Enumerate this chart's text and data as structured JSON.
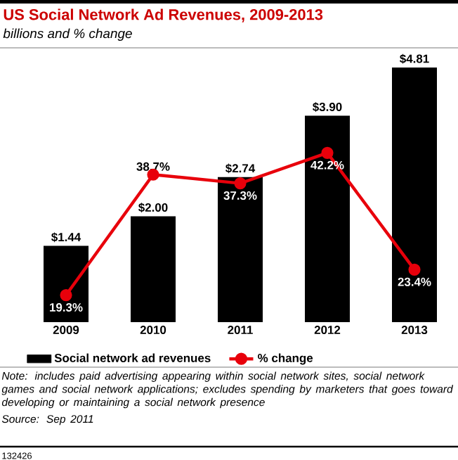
{
  "chart_data": {
    "type": "bar",
    "title": "US Social Network Ad Revenues, 2009-2013",
    "subtitle": "billions and % change",
    "categories": [
      "2009",
      "2010",
      "2011",
      "2012",
      "2013"
    ],
    "series": [
      {
        "name": "Social network ad revenues",
        "color": "#000000",
        "values": [
          1.44,
          2.0,
          2.74,
          3.9,
          4.81
        ],
        "value_labels": [
          "$1.44",
          "$2.00",
          "$2.74",
          "$3.90",
          "$4.81"
        ]
      },
      {
        "name": "% change",
        "type": "line",
        "axis": "y2",
        "color": "#e8000b",
        "values": [
          19.3,
          38.7,
          37.3,
          42.2,
          23.4
        ],
        "value_labels": [
          "19.3%",
          "38.7%",
          "37.3%",
          "42.2%",
          "23.4%"
        ]
      }
    ],
    "marker": "circle",
    "legend": "bottom",
    "annotations": [
      "Note: includes paid advertising appearing within social network sites, social network games and social network applications; excludes spending by marketers that goes toward developing or maintaining a social network presence",
      "Source: Sep 2011",
      "132426"
    ]
  }
}
